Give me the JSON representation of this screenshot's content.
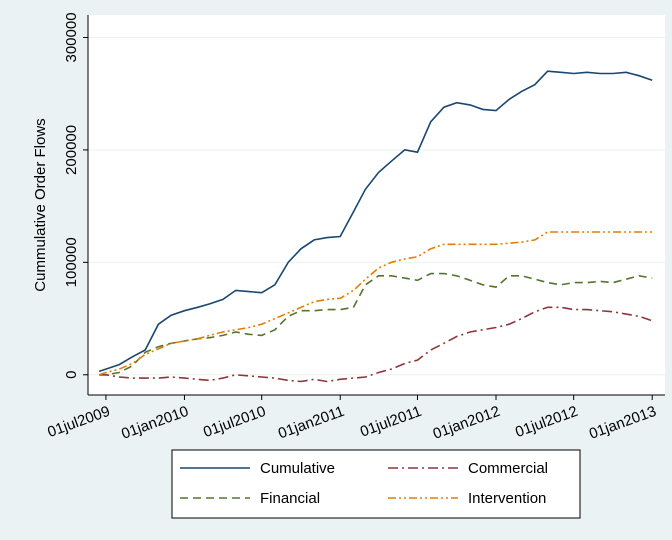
{
  "chart_data": {
    "type": "line",
    "ylabel": "Cummulative Order Flows",
    "x": [
      "2009-06-15",
      "2009-07-01",
      "2009-08-01",
      "2009-09-01",
      "2009-10-01",
      "2009-11-01",
      "2009-12-01",
      "2010-01-01",
      "2010-02-01",
      "2010-03-01",
      "2010-04-01",
      "2010-05-01",
      "2010-06-01",
      "2010-07-01",
      "2010-08-01",
      "2010-09-01",
      "2010-10-01",
      "2010-11-01",
      "2010-12-01",
      "2011-01-01",
      "2011-02-01",
      "2011-03-01",
      "2011-04-01",
      "2011-05-01",
      "2011-06-01",
      "2011-07-01",
      "2011-08-01",
      "2011-09-01",
      "2011-10-01",
      "2011-11-01",
      "2011-12-01",
      "2012-01-01",
      "2012-02-01",
      "2012-03-01",
      "2012-04-01",
      "2012-05-01",
      "2012-06-01",
      "2012-07-01",
      "2012-08-01",
      "2012-09-01",
      "2012-10-01",
      "2012-11-01",
      "2012-12-01",
      "2013-01-01"
    ],
    "series": [
      {
        "name": "Cumulative",
        "color": "#1a476f",
        "dash": "none",
        "values": [
          3000,
          5000,
          9000,
          16000,
          22000,
          45000,
          53000,
          57000,
          60000,
          63000,
          67000,
          75000,
          74000,
          73000,
          80000,
          100000,
          112000,
          120000,
          122000,
          123000,
          145000,
          165000,
          180000,
          190000,
          200000,
          198000,
          225000,
          238000,
          242000,
          240000,
          236000,
          235000,
          245000,
          252000,
          258000,
          270000,
          269000,
          268000,
          269000,
          268000,
          268000,
          269000,
          266000,
          262000
        ]
      },
      {
        "name": "Financial",
        "color": "#55752f",
        "dash": "8 5",
        "values": [
          0,
          0,
          2000,
          8000,
          20000,
          25000,
          28000,
          30000,
          32000,
          33000,
          35000,
          38000,
          36000,
          35000,
          40000,
          52000,
          57000,
          57000,
          58000,
          58000,
          60000,
          80000,
          88000,
          88000,
          86000,
          84000,
          90000,
          90000,
          88000,
          84000,
          80000,
          78000,
          88000,
          88000,
          85000,
          82000,
          80000,
          82000,
          82000,
          83000,
          82000,
          85000,
          88000,
          86000
        ]
      },
      {
        "name": "Commercial",
        "color": "#90353b",
        "dash": "10 4 2 4",
        "values": [
          0,
          0,
          -2000,
          -3000,
          -3000,
          -3000,
          -2000,
          -3000,
          -4000,
          -5000,
          -3000,
          0,
          -1000,
          -2000,
          -3000,
          -5000,
          -6000,
          -4000,
          -6000,
          -4000,
          -3000,
          -2000,
          2000,
          5000,
          10000,
          13000,
          22000,
          28000,
          34000,
          38000,
          40000,
          42000,
          45000,
          50000,
          56000,
          60000,
          60000,
          58000,
          58000,
          57000,
          56000,
          54000,
          52000,
          48000
        ]
      },
      {
        "name": "Intervention",
        "color": "#e37e00",
        "dash": "8 3 2 3 2 3",
        "values": [
          0,
          2000,
          5000,
          10000,
          18000,
          23000,
          28000,
          30000,
          32000,
          35000,
          38000,
          40000,
          42000,
          45000,
          50000,
          55000,
          60000,
          65000,
          67000,
          68000,
          75000,
          85000,
          95000,
          100000,
          103000,
          105000,
          112000,
          116000,
          116000,
          116000,
          116000,
          116000,
          117000,
          118000,
          120000,
          127000,
          127000,
          127000,
          127000,
          127000,
          127000,
          127000,
          127000,
          127000
        ]
      }
    ],
    "xlim": [
      "2009-05-20",
      "2013-01-31"
    ],
    "xticks": [
      {
        "value": "2009-07-01",
        "label": "01jul2009"
      },
      {
        "value": "2010-01-01",
        "label": "01jan2010"
      },
      {
        "value": "2010-07-01",
        "label": "01jul2010"
      },
      {
        "value": "2011-01-01",
        "label": "01jan2011"
      },
      {
        "value": "2011-07-01",
        "label": "01jul2011"
      },
      {
        "value": "2012-01-01",
        "label": "01jan2012"
      },
      {
        "value": "2012-07-01",
        "label": "01jul2012"
      },
      {
        "value": "2013-01-01",
        "label": "01jan2013"
      }
    ],
    "ylim": [
      -18000,
      320000
    ],
    "yticks": [
      0,
      100000,
      200000,
      300000
    ],
    "grid": true,
    "legend": "bottom"
  }
}
